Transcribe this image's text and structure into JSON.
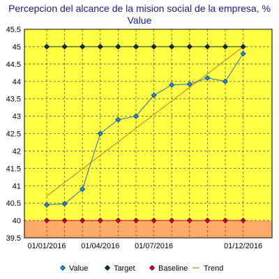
{
  "chart_data": {
    "type": "line",
    "title_line1": "Percepcion del alcance de la mision social de la empresa, %",
    "title_line2": "Value",
    "xlabel": "",
    "ylabel": "",
    "ylim": [
      39.5,
      45.5
    ],
    "yticks": [
      "39.5",
      "40",
      "40.5",
      "41",
      "41.5",
      "42",
      "42.5",
      "43",
      "43.5",
      "44",
      "44.5",
      "45",
      "45.5"
    ],
    "ytick_values": [
      39.5,
      40,
      40.5,
      41,
      41.5,
      42,
      42.5,
      43,
      43.5,
      44,
      44.5,
      45,
      45.5
    ],
    "xticks": [
      {
        "index": 0,
        "label": "01/01/2016"
      },
      {
        "index": 3,
        "label": "01/04/2016"
      },
      {
        "index": 6,
        "label": "01/07/2016"
      },
      {
        "index": 11,
        "label": "01/12/2016"
      }
    ],
    "points_count": 12,
    "grid": true,
    "series": [
      {
        "name": "Value",
        "values": [
          40.45,
          40.48,
          40.9,
          42.5,
          42.9,
          43.0,
          43.6,
          43.9,
          43.92,
          44.1,
          44.0,
          44.8
        ]
      },
      {
        "name": "Target",
        "values": [
          45,
          45,
          45,
          45,
          45,
          45,
          45,
          45,
          45,
          45,
          45,
          45
        ]
      },
      {
        "name": "Baseline",
        "values": [
          40,
          40,
          40,
          40,
          40,
          40,
          40,
          40,
          40,
          40,
          40,
          40
        ]
      },
      {
        "name": "Trend",
        "values": [
          40.7,
          45.0
        ]
      }
    ],
    "legend": [
      "Value",
      "Target",
      "Baseline",
      "Trend"
    ],
    "legend_position": "bottom",
    "colors": {
      "plot_bg": "#ffff44",
      "below_baseline_bg": "#ffaa66",
      "value": "#1e88e5",
      "value_line": "#1e6fb5",
      "target": "#0a3a2a",
      "baseline": "#cc0033",
      "trend": "#cc7722",
      "grid": "#555555",
      "title": "#1a1a8c"
    }
  }
}
